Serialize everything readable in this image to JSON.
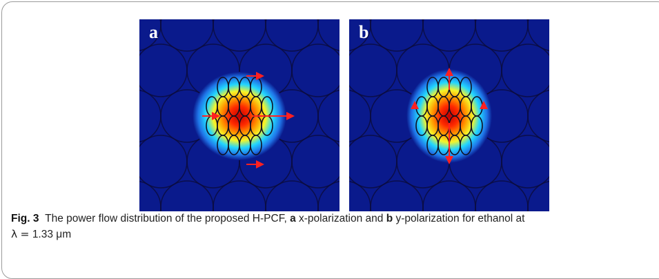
{
  "figure": {
    "panels": [
      {
        "letter": "a",
        "polarization": "x"
      },
      {
        "letter": "b",
        "polarization": "y"
      }
    ],
    "colors": {
      "background_field": "#0a1a8c",
      "hole_outline": "#0b0b3a",
      "arrow": "#ff2020",
      "core_hot": "#c00000",
      "core_warm": "#ff9a00",
      "core_mid": "#f5f52a",
      "core_cool": "#22d6ff"
    }
  },
  "caption": {
    "label": "Fig. 3",
    "text_1": "The power flow distribution of the proposed H-PCF,",
    "a": "a",
    "text_2": "x-polarization and",
    "b": "b",
    "text_3": "y-polarization for ethanol at",
    "lambda": "λ",
    "equals": "=",
    "value": "1.33 μm"
  }
}
